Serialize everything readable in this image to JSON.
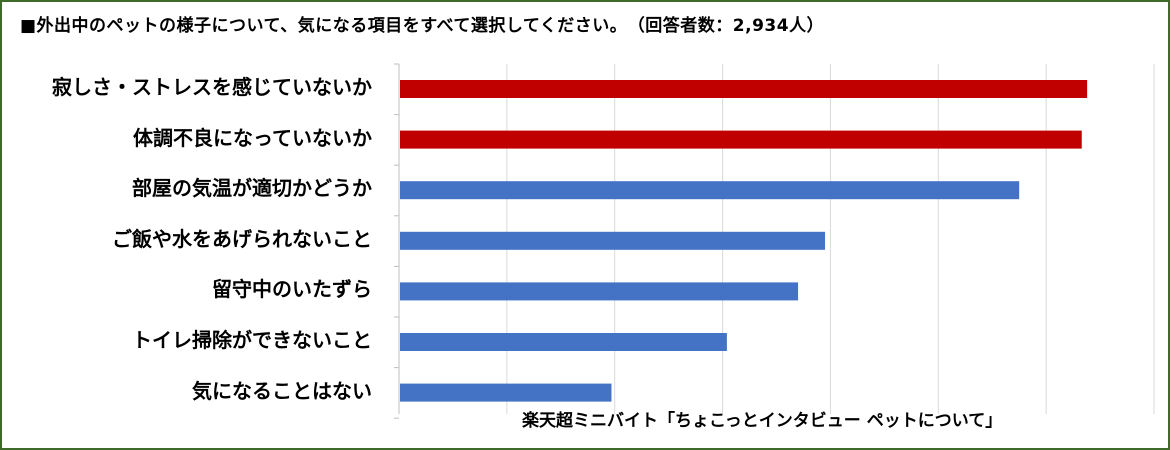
{
  "chart_data": {
    "type": "bar",
    "orientation": "horizontal",
    "title": "■外出中のペットの様子について、気になる項目をすべて選択してください。　（回答者数：2,934人）",
    "categories": [
      "寂しさ・ストレスを感じていないか",
      "体調不良になっていないか",
      "部屋の気温が適切かどうか",
      "ご飯や水をあげられないこと",
      "留守中のいたずら",
      "トイレ掃除ができないこと",
      "気になることはない"
    ],
    "values": [
      63.8,
      63.3,
      57.5,
      39.5,
      37.0,
      30.4,
      19.7
    ],
    "bar_colors": [
      "#c00000",
      "#c00000",
      "#4472c4",
      "#4472c4",
      "#4472c4",
      "#4472c4",
      "#4472c4"
    ],
    "xlim": [
      0,
      70
    ],
    "grid": true,
    "grid_step": 10,
    "gridline_color": "#d9d9d9",
    "axis_line_color": "#bfbfbf",
    "legend": "none",
    "xlabel": "",
    "ylabel": ""
  },
  "source_note": "楽天超ミニバイト「ちょこっとインタビュー ペットについて」",
  "frame_color": "#3f6b2a"
}
